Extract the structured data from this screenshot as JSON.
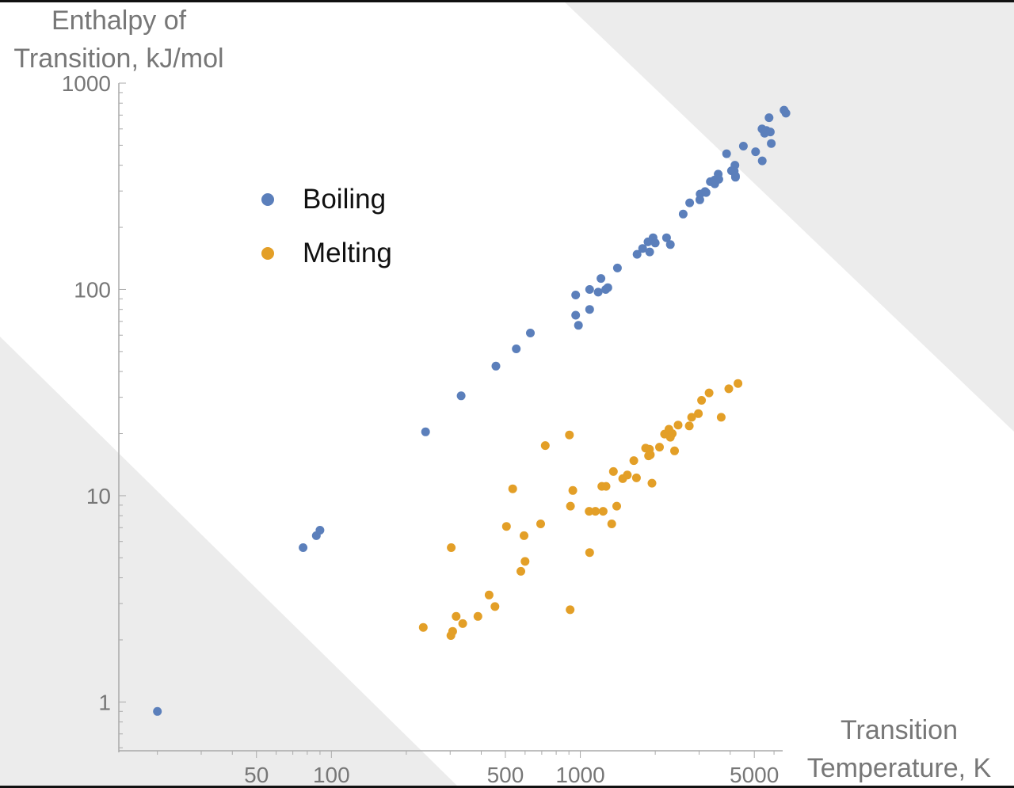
{
  "chart_data": {
    "type": "scatter",
    "title": "",
    "ylabel_lines": [
      "Enthalpy of",
      "Transition, kJ/mol"
    ],
    "xlabel_lines": [
      "Transition",
      "Temperature, K"
    ],
    "x_scale": "log",
    "y_scale": "log",
    "xlim": [
      14,
      6500
    ],
    "ylim": [
      0.58,
      1000
    ],
    "x_ticks": [
      50,
      100,
      500,
      1000,
      5000
    ],
    "x_tick_labels": [
      "50",
      "100",
      "500",
      "1000",
      "5000"
    ],
    "y_ticks": [
      1,
      10,
      100,
      1000
    ],
    "y_tick_labels": [
      "1",
      "10",
      "100",
      "1000"
    ],
    "legend_position": "upper-left",
    "grid": false,
    "background_bands": "light-gray diagonal bands at top-right and bottom-left",
    "colors": {
      "boiling": "#5b7fbb",
      "melting": "#e39f27",
      "band": "#ececec",
      "axis": "#aaaaaa"
    },
    "series": [
      {
        "name": "Boiling",
        "color": "#5b7fbb",
        "points": [
          [
            20,
            0.9
          ],
          [
            77,
            5.6
          ],
          [
            87,
            6.4
          ],
          [
            90,
            6.8
          ],
          [
            239,
            20.4
          ],
          [
            332,
            30.5
          ],
          [
            458,
            42.5
          ],
          [
            553,
            51.5
          ],
          [
            630,
            61.5
          ],
          [
            958,
            94
          ],
          [
            958,
            75
          ],
          [
            983,
            67
          ],
          [
            1090,
            100
          ],
          [
            1090,
            80
          ],
          [
            1180,
            97
          ],
          [
            1210,
            113
          ],
          [
            1290,
            102
          ],
          [
            1265,
            100
          ],
          [
            1410,
            127
          ],
          [
            1690,
            148
          ],
          [
            1780,
            158
          ],
          [
            1870,
            170
          ],
          [
            1900,
            152
          ],
          [
            1960,
            178
          ],
          [
            2000,
            168
          ],
          [
            2220,
            178
          ],
          [
            2300,
            165
          ],
          [
            2590,
            232
          ],
          [
            2750,
            263
          ],
          [
            3020,
            272
          ],
          [
            3030,
            290
          ],
          [
            3170,
            298
          ],
          [
            3200,
            295
          ],
          [
            3330,
            333
          ],
          [
            3470,
            325
          ],
          [
            3580,
            362
          ],
          [
            3460,
            339
          ],
          [
            3600,
            342
          ],
          [
            3870,
            455
          ],
          [
            4050,
            376
          ],
          [
            4150,
            375
          ],
          [
            4180,
            400
          ],
          [
            4200,
            355
          ],
          [
            4200,
            350
          ],
          [
            4520,
            495
          ],
          [
            5060,
            465
          ],
          [
            5370,
            600
          ],
          [
            5380,
            420
          ],
          [
            5500,
            572
          ],
          [
            5590,
            590
          ],
          [
            5730,
            680
          ],
          [
            5850,
            510
          ],
          [
            6580,
            740
          ],
          [
            6700,
            715
          ],
          [
            5800,
            580
          ]
        ]
      },
      {
        "name": "Melting",
        "color": "#e39f27",
        "points": [
          [
            234,
            2.3
          ],
          [
            302,
            2.1
          ],
          [
            307,
            2.2
          ],
          [
            317,
            2.6
          ],
          [
            337,
            2.4
          ],
          [
            303,
            5.6
          ],
          [
            388,
            2.6
          ],
          [
            430,
            3.3
          ],
          [
            454,
            2.9
          ],
          [
            505,
            7.1
          ],
          [
            535,
            10.8
          ],
          [
            577,
            4.3
          ],
          [
            594,
            6.4
          ],
          [
            600,
            4.8
          ],
          [
            693,
            7.3
          ],
          [
            723,
            17.5
          ],
          [
            904,
            19.7
          ],
          [
            913,
            8.9
          ],
          [
            933,
            10.6
          ],
          [
            910,
            2.8
          ],
          [
            1085,
            8.4
          ],
          [
            1090,
            5.3
          ],
          [
            1150,
            8.4
          ],
          [
            1235,
            8.4
          ],
          [
            1220,
            11.1
          ],
          [
            1268,
            11.1
          ],
          [
            1358,
            13.1
          ],
          [
            1337,
            7.3
          ],
          [
            1400,
            8.9
          ],
          [
            1480,
            12.1
          ],
          [
            1545,
            12.6
          ],
          [
            1640,
            14.8
          ],
          [
            1680,
            12.2
          ],
          [
            1830,
            17.0
          ],
          [
            1880,
            15.6
          ],
          [
            1895,
            16.8
          ],
          [
            1910,
            15.8
          ],
          [
            1940,
            11.5
          ],
          [
            2080,
            17.2
          ],
          [
            2180,
            19.9
          ],
          [
            2270,
            21.0
          ],
          [
            2340,
            20.0
          ],
          [
            2300,
            19.2
          ],
          [
            2390,
            16.5
          ],
          [
            2470,
            22.0
          ],
          [
            2740,
            21.8
          ],
          [
            2800,
            24.0
          ],
          [
            2980,
            25.0
          ],
          [
            3070,
            29.0
          ],
          [
            3290,
            31.5
          ],
          [
            3680,
            24.0
          ],
          [
            3950,
            33.0
          ],
          [
            4300,
            35.0
          ]
        ]
      }
    ]
  }
}
